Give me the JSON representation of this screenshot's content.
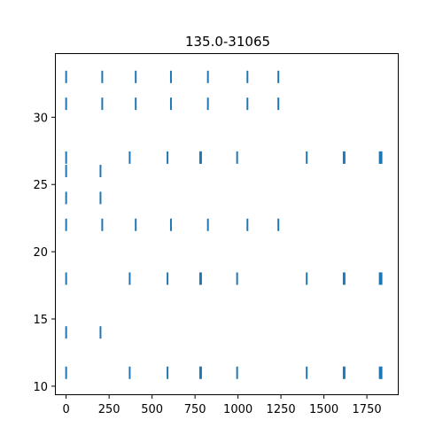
{
  "chart_data": {
    "type": "scatter",
    "marker": "vertical-line",
    "title": "135.0-31065",
    "xlabel": "",
    "ylabel": "",
    "xlim": [
      -60,
      1930
    ],
    "ylim": [
      9.4,
      34.7
    ],
    "x_ticks": [
      0,
      250,
      500,
      750,
      1000,
      1250,
      1500,
      1750
    ],
    "y_ticks": [
      10,
      15,
      20,
      25,
      30
    ],
    "x_tick_labels": [
      "0",
      "250",
      "500",
      "750",
      "1000",
      "1250",
      "1500",
      "1750"
    ],
    "y_tick_labels": [
      "10",
      "15",
      "20",
      "25",
      "30"
    ],
    "grid": false,
    "color": "#1f77b4",
    "rows": [
      {
        "y": 11,
        "x": [
          0,
          370,
          590,
          780,
          785,
          995,
          1400,
          1615,
          1620,
          1825,
          1830,
          1835
        ]
      },
      {
        "y": 14,
        "x": [
          0,
          200
        ]
      },
      {
        "y": 18,
        "x": [
          0,
          370,
          590,
          780,
          785,
          995,
          1400,
          1615,
          1620,
          1825,
          1830,
          1835
        ]
      },
      {
        "y": 22,
        "x": [
          0,
          210,
          405,
          610,
          825,
          1055,
          1235
        ]
      },
      {
        "y": 24,
        "x": [
          0,
          200
        ]
      },
      {
        "y": 26,
        "x": [
          0,
          200
        ]
      },
      {
        "y": 27,
        "x": [
          0,
          370,
          590,
          780,
          785,
          995,
          1400,
          1615,
          1620,
          1825,
          1830,
          1835
        ]
      },
      {
        "y": 31,
        "x": [
          0,
          210,
          405,
          610,
          825,
          1055,
          1235
        ]
      },
      {
        "y": 33,
        "x": [
          0,
          210,
          405,
          610,
          825,
          1055,
          1235
        ]
      }
    ]
  }
}
